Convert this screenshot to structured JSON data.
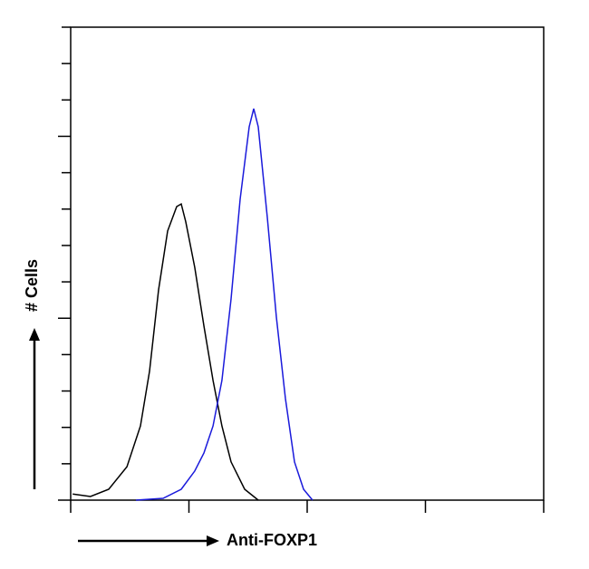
{
  "chart_data": {
    "type": "line",
    "xlabel": "Anti-FOXP1",
    "ylabel": "# Cells",
    "xscale": "log",
    "xlim": [
      1,
      10000
    ],
    "xticks": [
      1,
      10,
      100,
      1000,
      10000
    ],
    "ylim": [
      0,
      13
    ],
    "yticks": [
      0,
      1,
      2,
      3,
      4,
      5,
      6,
      7,
      8,
      9,
      10,
      11,
      12,
      13
    ],
    "series": [
      {
        "color": "#000000",
        "x": [
          1.04,
          1.47,
          2.1,
          2.99,
          3.89,
          4.64,
          5.54,
          6.61,
          7.88,
          8.61,
          9.4,
          11.2,
          13.4,
          16.0,
          19.0,
          22.7,
          29.6,
          38.6
        ],
        "values": [
          0.17,
          0.1,
          0.3,
          0.92,
          2.04,
          3.54,
          5.78,
          7.4,
          8.07,
          8.14,
          7.65,
          6.4,
          4.78,
          3.29,
          2.04,
          1.05,
          0.3,
          0
        ]
      },
      {
        "color": "#1a1adb",
        "x": [
          3.56,
          6.05,
          8.61,
          11.2,
          13.4,
          16.0,
          19.0,
          22.7,
          27.1,
          32.3,
          35.3,
          38.6,
          46.0,
          54.9,
          65.5,
          78.1,
          93.2,
          111
        ],
        "values": [
          0,
          0.05,
          0.3,
          0.8,
          1.3,
          2.04,
          3.29,
          5.53,
          8.27,
          10.26,
          10.76,
          10.26,
          7.77,
          5.03,
          2.79,
          1.05,
          0.3,
          0
        ]
      }
    ]
  }
}
